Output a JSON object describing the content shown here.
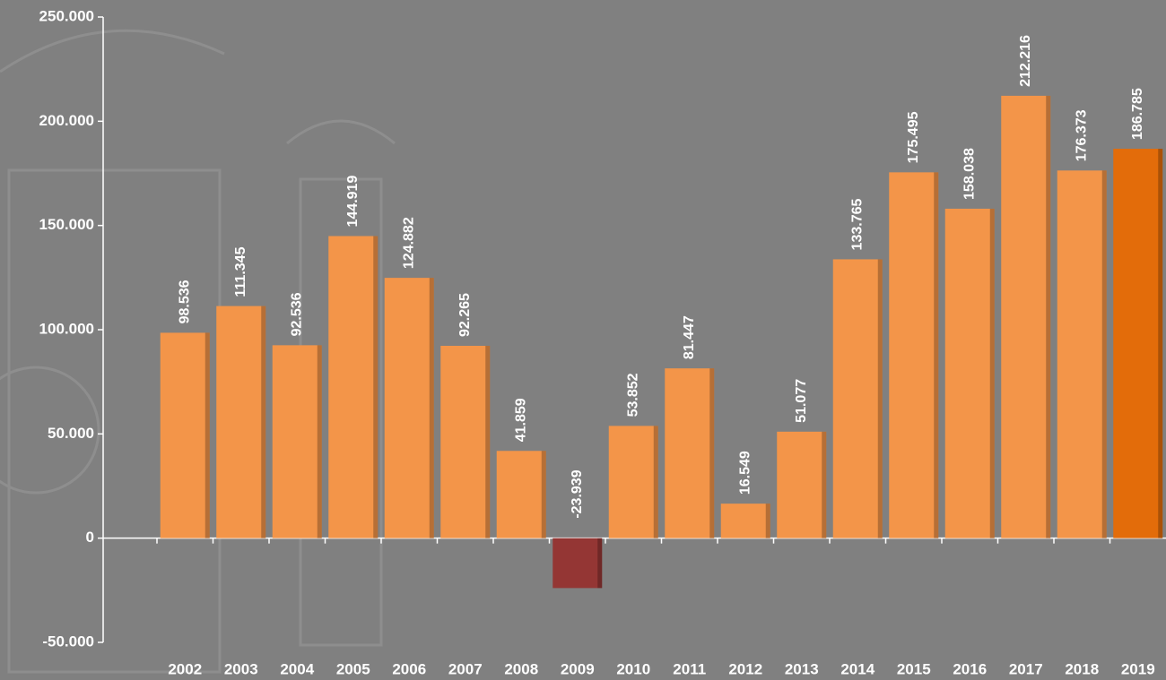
{
  "chart_data": {
    "type": "bar",
    "categories": [
      "2002",
      "2003",
      "2004",
      "2005",
      "2006",
      "2007",
      "2008",
      "2009",
      "2010",
      "2011",
      "2012",
      "2013",
      "2014",
      "2015",
      "2016",
      "2017",
      "2018",
      "2019"
    ],
    "values": [
      98536,
      111345,
      92536,
      144919,
      124882,
      92265,
      41859,
      -23939,
      53852,
      81447,
      16549,
      51077,
      133765,
      175495,
      158038,
      212216,
      176373,
      186785
    ],
    "value_labels": [
      "98.536",
      "111.345",
      "92.536",
      "144.919",
      "124.882",
      "92.265",
      "41.859",
      "-23.939",
      "53.852",
      "81.447",
      "16.549",
      "51.077",
      "133.765",
      "175.495",
      "158.038",
      "212.216",
      "176.373",
      "186.785"
    ],
    "colors": [
      "#f39549",
      "#f39549",
      "#f39549",
      "#f39549",
      "#f39549",
      "#f39549",
      "#f39549",
      "#943634",
      "#f39549",
      "#f39549",
      "#f39549",
      "#f39549",
      "#f39549",
      "#f39549",
      "#f39549",
      "#f39549",
      "#f39549",
      "#e36c0a"
    ],
    "ylim": [
      -50000,
      250000
    ],
    "yticks": [
      {
        "value": -50000,
        "label": "-50.000"
      },
      0,
      {
        "value": 50000,
        "label": "50.000"
      },
      {
        "value": 100000,
        "label": "100.000"
      },
      {
        "value": 150000,
        "label": "150.000"
      },
      {
        "value": 200000,
        "label": "200.000"
      },
      {
        "value": 250000,
        "label": "250.000"
      }
    ]
  }
}
